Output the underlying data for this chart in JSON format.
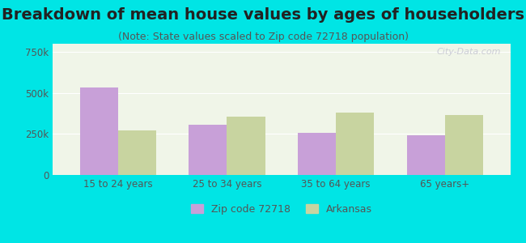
{
  "title": "Breakdown of mean house values by ages of householders",
  "subtitle": "(Note: State values scaled to Zip code 72718 population)",
  "categories": [
    "15 to 24 years",
    "25 to 34 years",
    "35 to 64 years",
    "65 years+"
  ],
  "zip_values": [
    535000,
    305000,
    255000,
    240000
  ],
  "state_values": [
    270000,
    355000,
    380000,
    365000
  ],
  "zip_color": "#c8a0d8",
  "state_color": "#c8d4a0",
  "zip_label": "Zip code 72718",
  "state_label": "Arkansas",
  "ylim": [
    0,
    800000
  ],
  "yticks": [
    0,
    250000,
    500000,
    750000
  ],
  "ytick_labels": [
    "0",
    "250k",
    "500k",
    "750k"
  ],
  "background_color": "#00e5e5",
  "plot_bg_color": "#f0f5e8",
  "bar_width": 0.35,
  "title_fontsize": 14,
  "subtitle_fontsize": 9,
  "watermark": "City-Data.com"
}
